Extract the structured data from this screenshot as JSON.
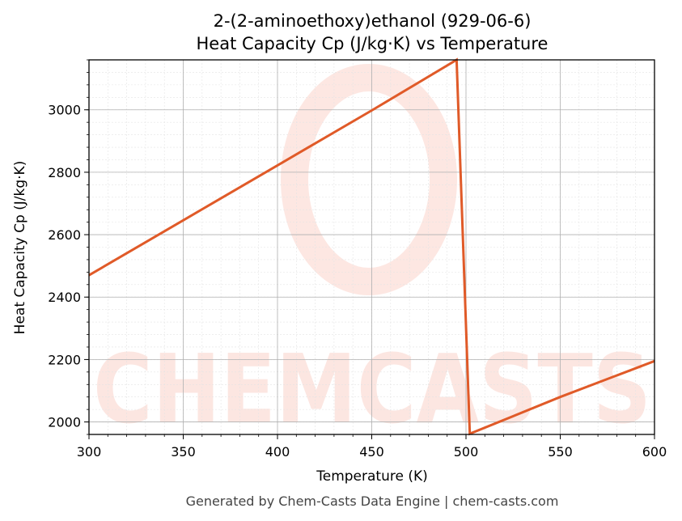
{
  "colors": {
    "series": "#e05a28",
    "grid_major": "#b0b0b0",
    "grid_minor": "#e4e4e4",
    "watermark": "#fbd3ca",
    "footer": "#444444"
  },
  "watermark": {
    "text": "CHEMCASTS"
  },
  "footer": {
    "text": "Generated by Chem-Casts Data Engine | chem-casts.com"
  },
  "chart_data": {
    "type": "line",
    "title": "2-(2-aminoethoxy)ethanol (929-06-6)",
    "subtitle": "Heat Capacity Cp (J/kg·K) vs Temperature",
    "xlabel": "Temperature (K)",
    "ylabel": "Heat Capacity Cp (J/kg·K)",
    "xlim": [
      300,
      600
    ],
    "ylim": [
      1960,
      3160
    ],
    "xticks": [
      300,
      350,
      400,
      450,
      500,
      550,
      600
    ],
    "yticks": [
      2000,
      2200,
      2400,
      2600,
      2800,
      3000
    ],
    "grid": true,
    "series": [
      {
        "x": [
          300,
          350,
          400,
          450,
          495,
          502,
          550,
          600
        ],
        "y": [
          2470,
          2646,
          2822,
          2998,
          3160,
          1962,
          2080,
          2195
        ]
      }
    ]
  }
}
